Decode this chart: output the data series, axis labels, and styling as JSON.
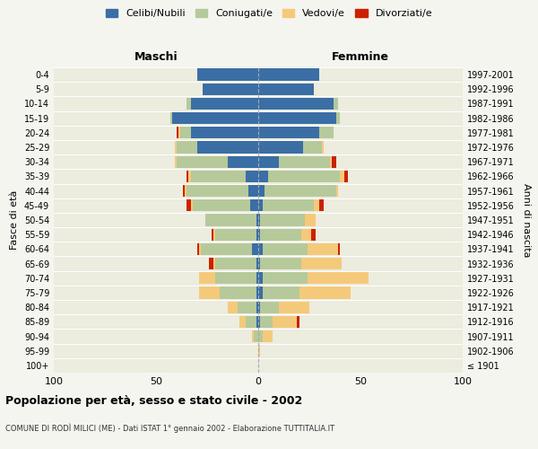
{
  "age_groups": [
    "100+",
    "95-99",
    "90-94",
    "85-89",
    "80-84",
    "75-79",
    "70-74",
    "65-69",
    "60-64",
    "55-59",
    "50-54",
    "45-49",
    "40-44",
    "35-39",
    "30-34",
    "25-29",
    "20-24",
    "15-19",
    "10-14",
    "5-9",
    "0-4"
  ],
  "birth_years": [
    "≤ 1901",
    "1902-1906",
    "1907-1911",
    "1912-1916",
    "1917-1921",
    "1922-1926",
    "1927-1931",
    "1932-1936",
    "1937-1941",
    "1942-1946",
    "1947-1951",
    "1952-1956",
    "1957-1961",
    "1962-1966",
    "1967-1971",
    "1972-1976",
    "1977-1981",
    "1982-1986",
    "1987-1991",
    "1992-1996",
    "1997-2001"
  ],
  "male": {
    "celibi": [
      0,
      0,
      0,
      1,
      1,
      1,
      1,
      1,
      3,
      1,
      1,
      4,
      5,
      6,
      15,
      30,
      33,
      42,
      33,
      27,
      30
    ],
    "coniugati": [
      0,
      0,
      2,
      5,
      9,
      18,
      20,
      20,
      25,
      20,
      25,
      28,
      30,
      27,
      25,
      10,
      5,
      1,
      2,
      0,
      0
    ],
    "vedovi": [
      0,
      0,
      1,
      3,
      5,
      10,
      8,
      1,
      1,
      1,
      0,
      1,
      1,
      1,
      1,
      1,
      1,
      0,
      0,
      0,
      0
    ],
    "divorziati": [
      0,
      0,
      0,
      0,
      0,
      0,
      0,
      2,
      1,
      1,
      0,
      2,
      1,
      1,
      0,
      0,
      1,
      0,
      0,
      0,
      0
    ]
  },
  "female": {
    "nubili": [
      0,
      0,
      0,
      1,
      1,
      2,
      2,
      1,
      2,
      1,
      1,
      2,
      3,
      5,
      10,
      22,
      30,
      38,
      37,
      27,
      30
    ],
    "coniugate": [
      0,
      0,
      2,
      6,
      9,
      18,
      22,
      20,
      22,
      20,
      22,
      25,
      35,
      35,
      25,
      9,
      7,
      2,
      2,
      0,
      0
    ],
    "vedove": [
      0,
      1,
      5,
      12,
      15,
      25,
      30,
      20,
      15,
      5,
      5,
      3,
      1,
      2,
      1,
      1,
      0,
      0,
      0,
      0,
      0
    ],
    "divorziate": [
      0,
      0,
      0,
      1,
      0,
      0,
      0,
      0,
      1,
      2,
      0,
      2,
      0,
      2,
      2,
      0,
      0,
      0,
      0,
      0,
      0
    ]
  },
  "colors": {
    "celibi_nubili": "#3a6ea5",
    "coniugati": "#b5c99a",
    "vedovi": "#f5c97a",
    "divorziati": "#cc2200"
  },
  "xlim": 100,
  "title": "Popolazione per età, sesso e stato civile - 2002",
  "subtitle": "COMUNE DI RODÌ MILICI (ME) - Dati ISTAT 1° gennaio 2002 - Elaborazione TUTTITALIA.IT",
  "ylabel_left": "Fasce di età",
  "ylabel_right": "Anni di nascita",
  "legend_labels": [
    "Celibi/Nubili",
    "Coniugati/e",
    "Vedovi/e",
    "Divorziati/e"
  ],
  "maschi_label": "Maschi",
  "femmine_label": "Femmine",
  "background_color": "#f5f5f0",
  "plot_bg": "#ececdf"
}
